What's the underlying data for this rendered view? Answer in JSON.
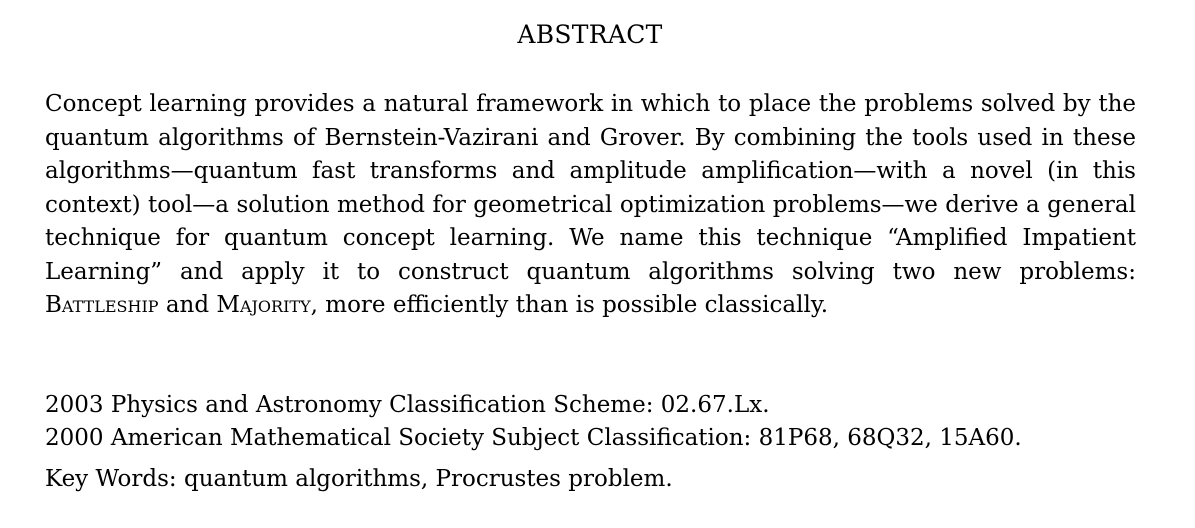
{
  "heading": "ABSTRACT",
  "abstract": {
    "part1": "Concept learning provides a natural framework in which to place the problems solved by the quantum algorithms of Bernstein-Vazirani and Grover.  By combining the tools used in these algorithms—quantum fast transforms and amplitude amplification—with a novel (in this context) tool—a solution method for geometrical optimization problems—we derive a general technique for quantum concept learning.  We name this technique “Amplified Impatient Learning” and apply it to construct quantum algorithms solving two new problems: ",
    "problem1": "Battleship",
    "part2": " and ",
    "problem2": "Majority",
    "part3": ", more efficiently than is possible classically."
  },
  "classifications": {
    "pacs": "2003 Physics and Astronomy Classification Scheme: 02.67.Lx.",
    "ams": "2000 American Mathematical Society Subject Classification: 81P68, 68Q32, 15A60."
  },
  "keywords": "Key Words: quantum algorithms, Procrustes problem."
}
